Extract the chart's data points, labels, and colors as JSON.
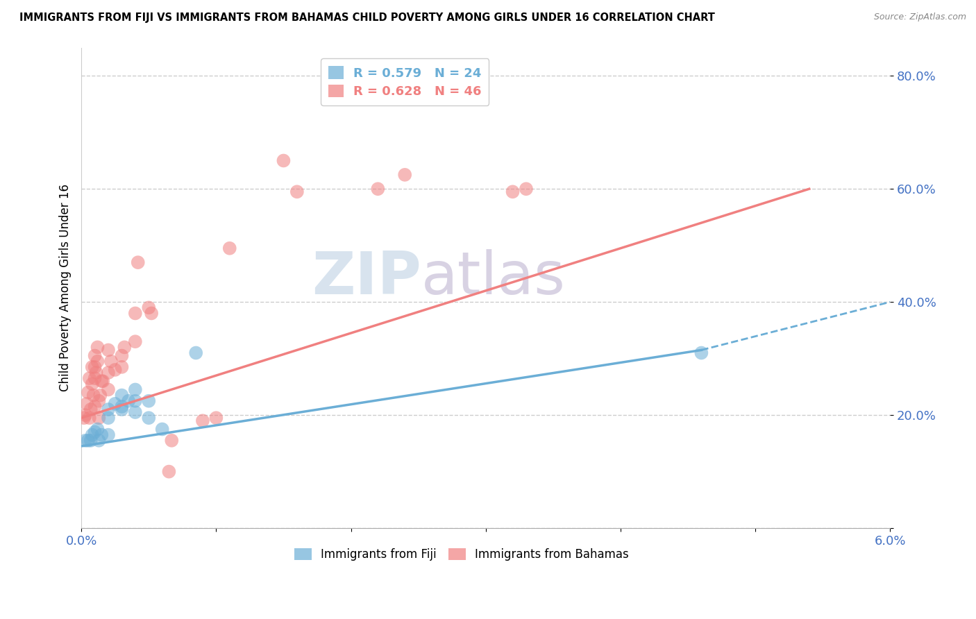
{
  "title": "IMMIGRANTS FROM FIJI VS IMMIGRANTS FROM BAHAMAS CHILD POVERTY AMONG GIRLS UNDER 16 CORRELATION CHART",
  "source": "Source: ZipAtlas.com",
  "ylabel": "Child Poverty Among Girls Under 16",
  "xlim": [
    0.0,
    0.06
  ],
  "ylim": [
    0.0,
    0.85
  ],
  "xticks": [
    0.0,
    0.01,
    0.02,
    0.03,
    0.04,
    0.05,
    0.06
  ],
  "xticklabels": [
    "0.0%",
    "",
    "",
    "",
    "",
    "",
    "6.0%"
  ],
  "ytick_positions": [
    0.0,
    0.2,
    0.4,
    0.6,
    0.8
  ],
  "yticklabels": [
    "",
    "20.0%",
    "40.0%",
    "60.0%",
    "80.0%"
  ],
  "fiji_color": "#6baed6",
  "bahamas_color": "#f08080",
  "fiji_R": 0.579,
  "fiji_N": 24,
  "bahamas_R": 0.628,
  "bahamas_N": 46,
  "fiji_scatter": [
    [
      0.0003,
      0.155
    ],
    [
      0.0005,
      0.155
    ],
    [
      0.0007,
      0.155
    ],
    [
      0.0008,
      0.165
    ],
    [
      0.001,
      0.17
    ],
    [
      0.0012,
      0.175
    ],
    [
      0.0013,
      0.155
    ],
    [
      0.0015,
      0.165
    ],
    [
      0.002,
      0.195
    ],
    [
      0.002,
      0.21
    ],
    [
      0.002,
      0.165
    ],
    [
      0.0025,
      0.22
    ],
    [
      0.003,
      0.21
    ],
    [
      0.003,
      0.235
    ],
    [
      0.003,
      0.215
    ],
    [
      0.0035,
      0.225
    ],
    [
      0.004,
      0.205
    ],
    [
      0.004,
      0.225
    ],
    [
      0.004,
      0.245
    ],
    [
      0.005,
      0.225
    ],
    [
      0.005,
      0.195
    ],
    [
      0.006,
      0.175
    ],
    [
      0.0085,
      0.31
    ],
    [
      0.046,
      0.31
    ]
  ],
  "bahamas_scatter": [
    [
      0.0002,
      0.195
    ],
    [
      0.0003,
      0.2
    ],
    [
      0.0004,
      0.22
    ],
    [
      0.0005,
      0.24
    ],
    [
      0.0006,
      0.195
    ],
    [
      0.0006,
      0.265
    ],
    [
      0.0007,
      0.21
    ],
    [
      0.0008,
      0.255
    ],
    [
      0.0008,
      0.285
    ],
    [
      0.0009,
      0.235
    ],
    [
      0.001,
      0.215
    ],
    [
      0.001,
      0.265
    ],
    [
      0.001,
      0.285
    ],
    [
      0.001,
      0.305
    ],
    [
      0.0011,
      0.275
    ],
    [
      0.0012,
      0.295
    ],
    [
      0.0012,
      0.32
    ],
    [
      0.0013,
      0.195
    ],
    [
      0.0013,
      0.225
    ],
    [
      0.0014,
      0.235
    ],
    [
      0.0015,
      0.26
    ],
    [
      0.0016,
      0.26
    ],
    [
      0.002,
      0.245
    ],
    [
      0.002,
      0.275
    ],
    [
      0.002,
      0.315
    ],
    [
      0.0022,
      0.295
    ],
    [
      0.0025,
      0.28
    ],
    [
      0.003,
      0.285
    ],
    [
      0.003,
      0.305
    ],
    [
      0.0032,
      0.32
    ],
    [
      0.004,
      0.33
    ],
    [
      0.004,
      0.38
    ],
    [
      0.0042,
      0.47
    ],
    [
      0.005,
      0.39
    ],
    [
      0.0052,
      0.38
    ],
    [
      0.0065,
      0.1
    ],
    [
      0.0067,
      0.155
    ],
    [
      0.009,
      0.19
    ],
    [
      0.01,
      0.195
    ],
    [
      0.011,
      0.495
    ],
    [
      0.015,
      0.65
    ],
    [
      0.016,
      0.595
    ],
    [
      0.022,
      0.6
    ],
    [
      0.024,
      0.625
    ],
    [
      0.032,
      0.595
    ],
    [
      0.033,
      0.6
    ]
  ],
  "fiji_line_solid": [
    [
      0.0,
      0.145
    ],
    [
      0.046,
      0.315
    ]
  ],
  "fiji_line_dash": [
    [
      0.046,
      0.315
    ],
    [
      0.06,
      0.4
    ]
  ],
  "bahamas_line": [
    [
      0.0,
      0.195
    ],
    [
      0.054,
      0.6
    ]
  ],
  "watermark_part1": "ZIP",
  "watermark_part2": "atlas",
  "background_color": "#ffffff",
  "grid_color": "#cccccc",
  "tick_color": "#4472c4"
}
